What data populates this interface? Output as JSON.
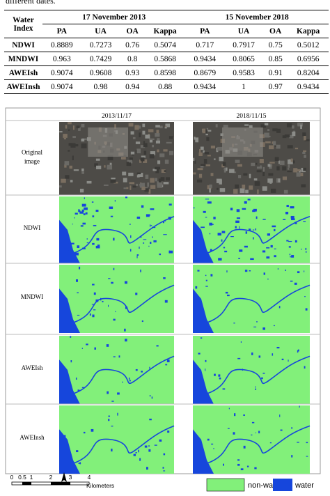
{
  "header": {
    "caption_fragment": "different dates."
  },
  "table": {
    "index_header": "Water Index",
    "group_headers": [
      "17 November 2013",
      "15 November 2018"
    ],
    "subcolumns": [
      "PA",
      "UA",
      "OA",
      "Kappa",
      "PA",
      "UA",
      "OA",
      "Kappa"
    ],
    "rows": [
      [
        "NDWI",
        "0.8889",
        "0.7273",
        "0.76",
        "0.5074",
        "0.717",
        "0.7917",
        "0.75",
        "0.5012"
      ],
      [
        "MNDWI",
        "0.963",
        "0.7429",
        "0.8",
        "0.5868",
        "0.9434",
        "0.8065",
        "0.85",
        "0.6956"
      ],
      [
        "AWEIsh",
        "0.9074",
        "0.9608",
        "0.93",
        "0.8598",
        "0.8679",
        "0.9583",
        "0.91",
        "0.8204"
      ],
      [
        "AWEInsh",
        "0.9074",
        "0.98",
        "0.94",
        "0.88",
        "0.9434",
        "1",
        "0.97",
        "0.9434"
      ]
    ]
  },
  "figure": {
    "column_headers": [
      "2013/11/17",
      "2018/11/15"
    ],
    "row_labels": [
      "Original image",
      "NDWI",
      "MNDWI",
      "AWEIsh",
      "AWEInsh"
    ],
    "scale_bar": {
      "ticks": [
        "0",
        "0.5",
        "1",
        "2",
        "3",
        "4"
      ],
      "unit": "Kilometers"
    },
    "legend": [
      "non-water",
      "water"
    ]
  }
}
